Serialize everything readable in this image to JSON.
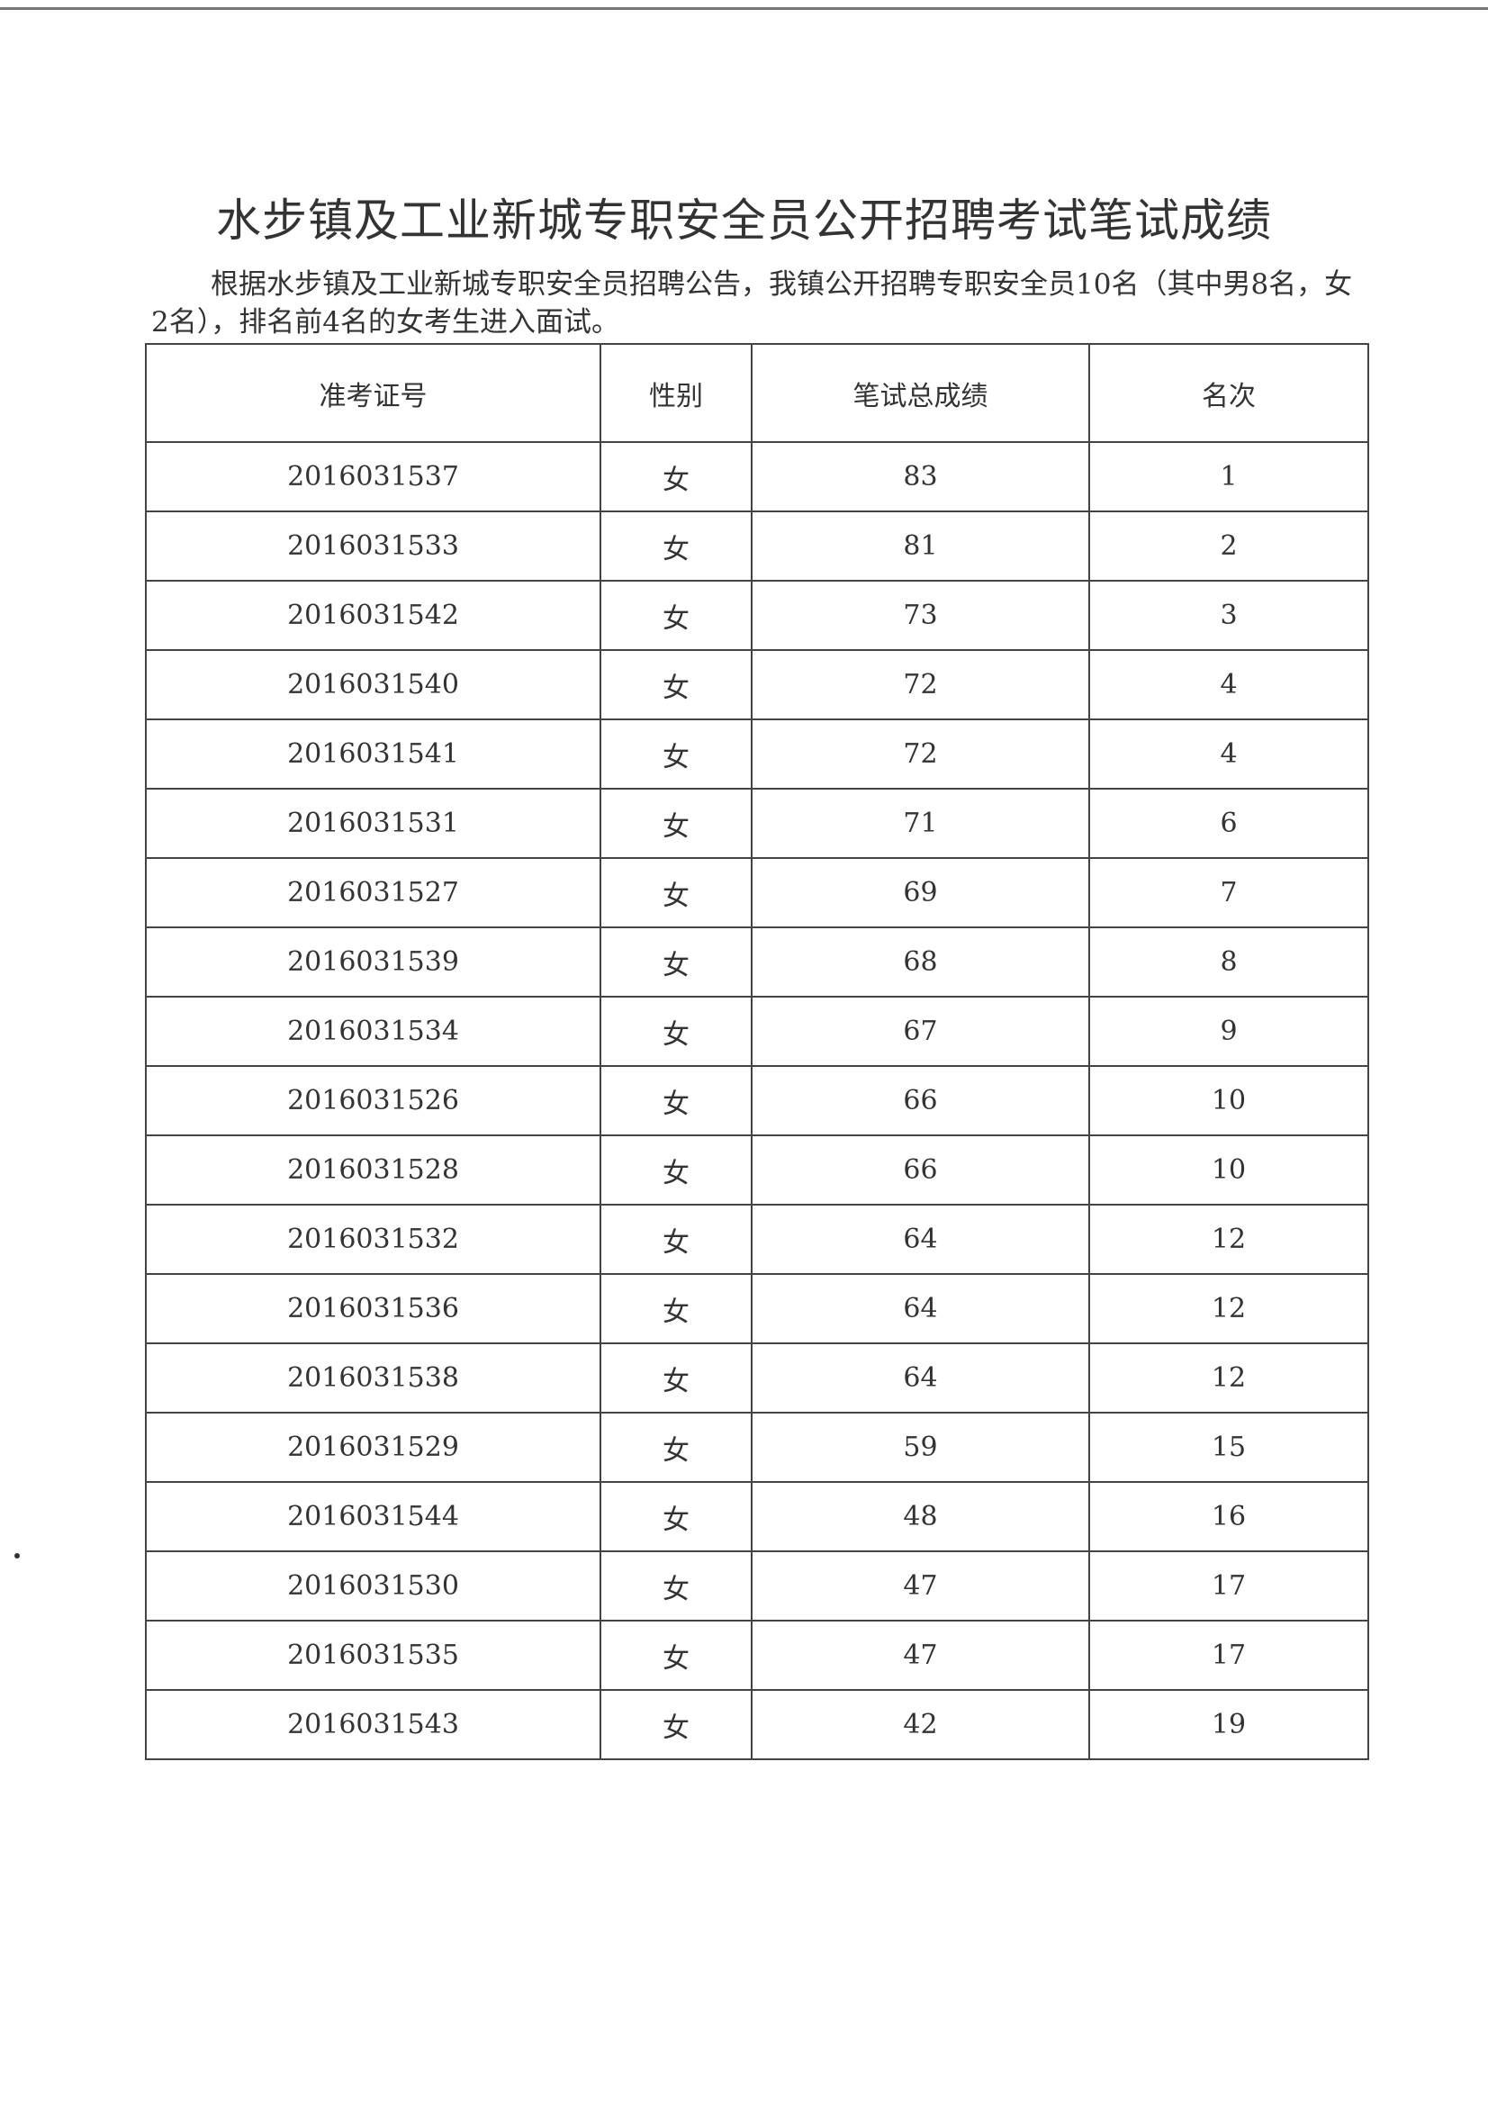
{
  "title": "水步镇及工业新城专职安全员公开招聘考试笔试成绩",
  "intro": "根据水步镇及工业新城专职安全员招聘公告，我镇公开招聘专职安全员10名（其中男8名，女2名），排名前4名的女考生进入面试。",
  "table": {
    "headers": [
      "准考证号",
      "性别",
      "笔试总成绩",
      "名次"
    ],
    "rows": [
      [
        "2016031537",
        "女",
        "83",
        "1"
      ],
      [
        "2016031533",
        "女",
        "81",
        "2"
      ],
      [
        "2016031542",
        "女",
        "73",
        "3"
      ],
      [
        "2016031540",
        "女",
        "72",
        "4"
      ],
      [
        "2016031541",
        "女",
        "72",
        "4"
      ],
      [
        "2016031531",
        "女",
        "71",
        "6"
      ],
      [
        "2016031527",
        "女",
        "69",
        "7"
      ],
      [
        "2016031539",
        "女",
        "68",
        "8"
      ],
      [
        "2016031534",
        "女",
        "67",
        "9"
      ],
      [
        "2016031526",
        "女",
        "66",
        "10"
      ],
      [
        "2016031528",
        "女",
        "66",
        "10"
      ],
      [
        "2016031532",
        "女",
        "64",
        "12"
      ],
      [
        "2016031536",
        "女",
        "64",
        "12"
      ],
      [
        "2016031538",
        "女",
        "64",
        "12"
      ],
      [
        "2016031529",
        "女",
        "59",
        "15"
      ],
      [
        "2016031544",
        "女",
        "48",
        "16"
      ],
      [
        "2016031530",
        "女",
        "47",
        "17"
      ],
      [
        "2016031535",
        "女",
        "47",
        "17"
      ],
      [
        "2016031543",
        "女",
        "42",
        "19"
      ]
    ]
  }
}
